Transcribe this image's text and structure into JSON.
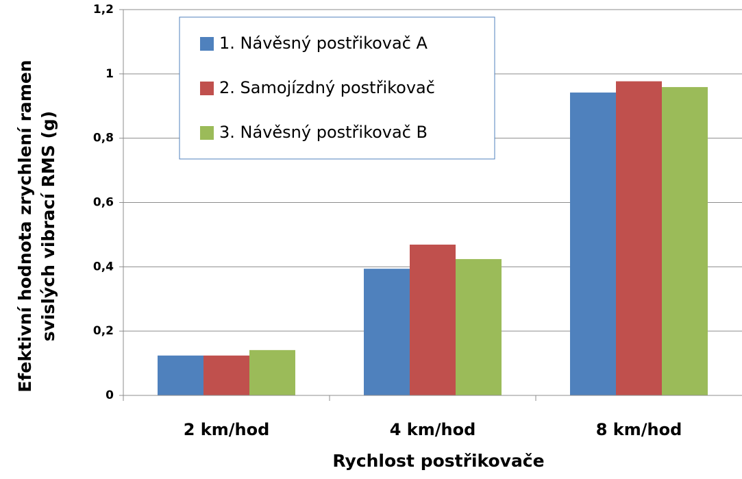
{
  "chart_data": {
    "type": "bar",
    "ylabel": [
      "Efektivní hodnota zrychlení ramen",
      "svislých vibrací RMS (g)"
    ],
    "xlabel": "Rychlost postřikovače",
    "categories": [
      "2 km/hod",
      "4 km/hod",
      "8 km/hod"
    ],
    "series": [
      {
        "name": "1. Návěsný postřikovač A",
        "color": "#4f81bd",
        "values": [
          0.124,
          0.394,
          0.942
        ]
      },
      {
        "name": "2. Samojízdný postřikovač",
        "color": "#c0504d",
        "values": [
          0.124,
          0.469,
          0.977
        ]
      },
      {
        "name": "3. Návěsný postřikovač B",
        "color": "#9bbb59",
        "values": [
          0.141,
          0.424,
          0.959
        ]
      }
    ],
    "ylim": [
      0,
      1.2
    ],
    "yticks": [
      0,
      {
        "value": 0.2,
        "label": "0,2"
      },
      {
        "value": 0.4,
        "label": "0,4"
      },
      {
        "value": 0.6,
        "label": "0,6"
      },
      {
        "value": 0.8,
        "label": "0,8"
      },
      1,
      {
        "value": 1.2,
        "label": "1,2"
      }
    ],
    "grid": true,
    "legend": "top-left"
  }
}
